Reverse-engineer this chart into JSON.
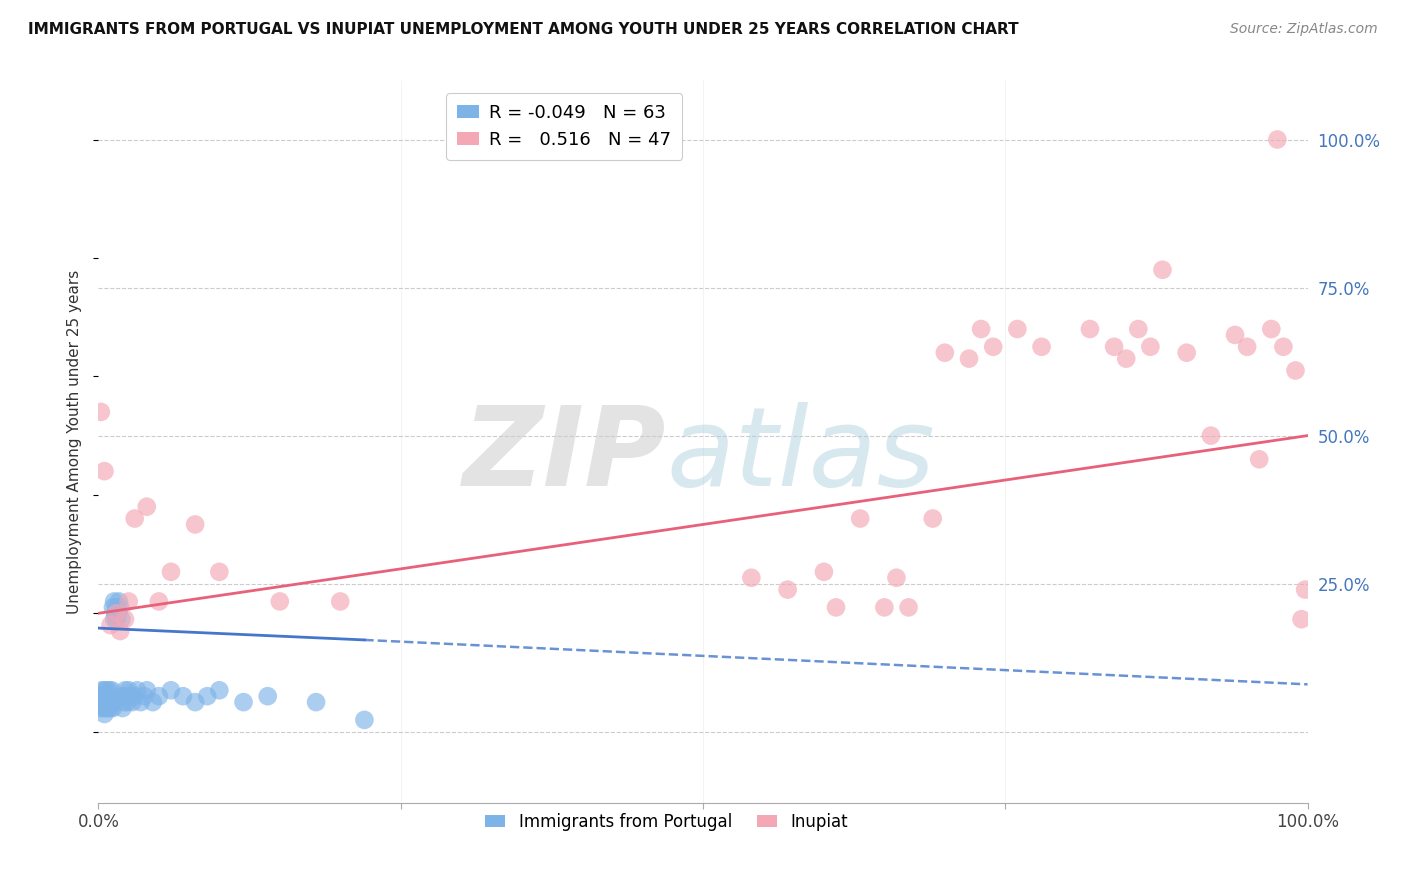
{
  "title": "IMMIGRANTS FROM PORTUGAL VS INUPIAT UNEMPLOYMENT AMONG YOUTH UNDER 25 YEARS CORRELATION CHART",
  "source": "Source: ZipAtlas.com",
  "ylabel": "Unemployment Among Youth under 25 years",
  "ytick_labels": [
    "25.0%",
    "50.0%",
    "75.0%",
    "100.0%"
  ],
  "ytick_values": [
    0.25,
    0.5,
    0.75,
    1.0
  ],
  "xlim": [
    0,
    1.0
  ],
  "ylim": [
    -0.12,
    1.1
  ],
  "legend_blue_r": "-0.049",
  "legend_blue_n": "63",
  "legend_pink_r": "0.516",
  "legend_pink_n": "47",
  "blue_color": "#7EB3E8",
  "pink_color": "#F4A7B5",
  "blue_trend_color": "#4477CC",
  "pink_trend_color": "#E8607A",
  "blue_trend_solid_end": 0.22,
  "blue_trend_y0": 0.175,
  "blue_trend_y1": 0.155,
  "blue_trend_dashed_y1": 0.08,
  "pink_trend_y0": 0.2,
  "pink_trend_y1": 0.5,
  "blue_scatter_x": [
    0.001,
    0.002,
    0.002,
    0.003,
    0.003,
    0.004,
    0.004,
    0.004,
    0.005,
    0.005,
    0.005,
    0.005,
    0.006,
    0.006,
    0.006,
    0.007,
    0.007,
    0.008,
    0.008,
    0.008,
    0.009,
    0.009,
    0.01,
    0.01,
    0.01,
    0.011,
    0.011,
    0.012,
    0.012,
    0.013,
    0.013,
    0.014,
    0.015,
    0.015,
    0.016,
    0.017,
    0.018,
    0.019,
    0.02,
    0.02,
    0.021,
    0.022,
    0.023,
    0.024,
    0.025,
    0.026,
    0.028,
    0.03,
    0.032,
    0.035,
    0.038,
    0.04,
    0.045,
    0.05,
    0.06,
    0.07,
    0.08,
    0.09,
    0.1,
    0.12,
    0.14,
    0.18,
    0.22
  ],
  "blue_scatter_y": [
    0.05,
    0.04,
    0.06,
    0.05,
    0.07,
    0.04,
    0.06,
    0.05,
    0.03,
    0.05,
    0.06,
    0.07,
    0.04,
    0.05,
    0.06,
    0.05,
    0.07,
    0.04,
    0.05,
    0.06,
    0.05,
    0.07,
    0.04,
    0.05,
    0.06,
    0.05,
    0.07,
    0.04,
    0.21,
    0.19,
    0.22,
    0.2,
    0.21,
    0.19,
    0.2,
    0.22,
    0.21,
    0.19,
    0.04,
    0.06,
    0.05,
    0.07,
    0.06,
    0.05,
    0.07,
    0.06,
    0.05,
    0.06,
    0.07,
    0.05,
    0.06,
    0.07,
    0.05,
    0.06,
    0.07,
    0.06,
    0.05,
    0.06,
    0.07,
    0.05,
    0.06,
    0.05,
    0.02
  ],
  "pink_scatter_x": [
    0.002,
    0.005,
    0.01,
    0.015,
    0.018,
    0.022,
    0.025,
    0.03,
    0.04,
    0.05,
    0.06,
    0.08,
    0.1,
    0.15,
    0.2,
    0.54,
    0.57,
    0.6,
    0.61,
    0.63,
    0.65,
    0.66,
    0.67,
    0.69,
    0.7,
    0.72,
    0.73,
    0.74,
    0.76,
    0.78,
    0.82,
    0.84,
    0.85,
    0.86,
    0.87,
    0.88,
    0.9,
    0.92,
    0.94,
    0.95,
    0.96,
    0.97,
    0.975,
    0.98,
    0.99,
    0.995,
    0.998
  ],
  "pink_scatter_y": [
    0.54,
    0.44,
    0.18,
    0.2,
    0.17,
    0.19,
    0.22,
    0.36,
    0.38,
    0.22,
    0.27,
    0.35,
    0.27,
    0.22,
    0.22,
    0.26,
    0.24,
    0.27,
    0.21,
    0.36,
    0.21,
    0.26,
    0.21,
    0.36,
    0.64,
    0.63,
    0.68,
    0.65,
    0.68,
    0.65,
    0.68,
    0.65,
    0.63,
    0.68,
    0.65,
    0.78,
    0.64,
    0.5,
    0.67,
    0.65,
    0.46,
    0.68,
    1.0,
    0.65,
    0.61,
    0.19,
    0.24
  ]
}
